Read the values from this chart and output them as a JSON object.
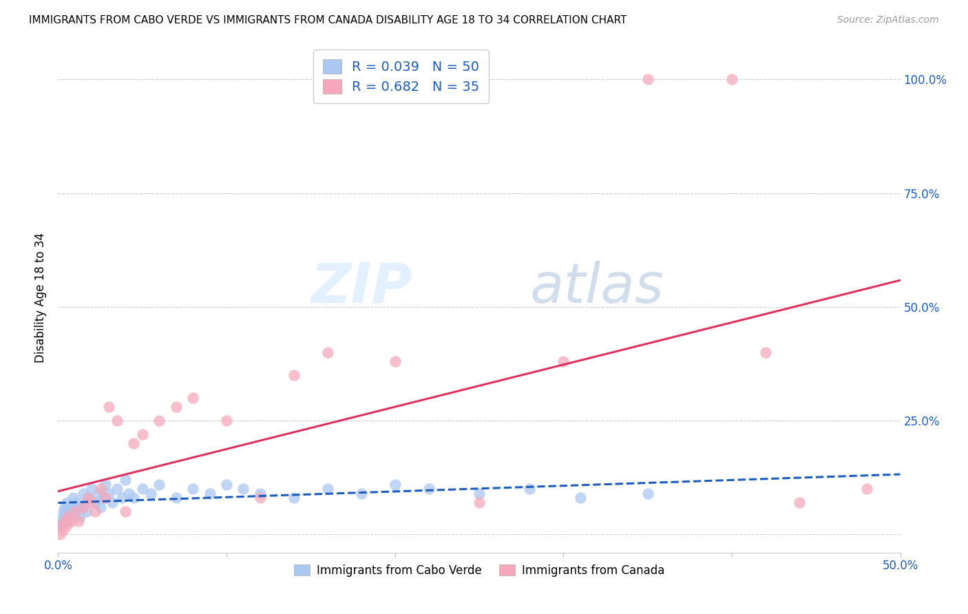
{
  "title": "IMMIGRANTS FROM CABO VERDE VS IMMIGRANTS FROM CANADA DISABILITY AGE 18 TO 34 CORRELATION CHART",
  "source": "Source: ZipAtlas.com",
  "ylabel": "Disability Age 18 to 34",
  "xlim": [
    0.0,
    0.5
  ],
  "ylim": [
    -0.04,
    1.08
  ],
  "xtick_positions": [
    0.0,
    0.1,
    0.2,
    0.3,
    0.4,
    0.5
  ],
  "xticklabels": [
    "0.0%",
    "",
    "",
    "",
    "",
    "50.0%"
  ],
  "ytick_positions": [
    0.0,
    0.25,
    0.5,
    0.75,
    1.0
  ],
  "ytick_labels_right": [
    "",
    "25.0%",
    "50.0%",
    "75.0%",
    "100.0%"
  ],
  "watermark_zip": "ZIP",
  "watermark_atlas": "atlas",
  "cabo_verde_color": "#aac8f0",
  "canada_color": "#f5a8bc",
  "cabo_verde_line_color": "#1a5cbf",
  "canada_line_color": "#e03060",
  "cabo_verde_R": 0.039,
  "cabo_verde_N": 50,
  "canada_R": 0.682,
  "canada_N": 35,
  "legend_label_1": "Immigrants from Cabo Verde",
  "legend_label_2": "Immigrants from Canada",
  "cabo_verde_x": [
    0.001,
    0.002,
    0.003,
    0.003,
    0.004,
    0.005,
    0.005,
    0.006,
    0.007,
    0.008,
    0.009,
    0.01,
    0.011,
    0.012,
    0.013,
    0.015,
    0.016,
    0.017,
    0.018,
    0.02,
    0.022,
    0.024,
    0.025,
    0.027,
    0.028,
    0.03,
    0.032,
    0.035,
    0.038,
    0.04,
    0.042,
    0.045,
    0.05,
    0.055,
    0.06,
    0.07,
    0.08,
    0.09,
    0.1,
    0.11,
    0.12,
    0.14,
    0.16,
    0.18,
    0.2,
    0.22,
    0.25,
    0.28,
    0.31,
    0.35
  ],
  "cabo_verde_y": [
    0.02,
    0.03,
    0.05,
    0.04,
    0.06,
    0.03,
    0.07,
    0.05,
    0.04,
    0.06,
    0.08,
    0.05,
    0.07,
    0.06,
    0.04,
    0.09,
    0.07,
    0.05,
    0.08,
    0.1,
    0.07,
    0.09,
    0.06,
    0.08,
    0.11,
    0.09,
    0.07,
    0.1,
    0.08,
    0.12,
    0.09,
    0.08,
    0.1,
    0.09,
    0.11,
    0.08,
    0.1,
    0.09,
    0.11,
    0.1,
    0.09,
    0.08,
    0.1,
    0.09,
    0.11,
    0.1,
    0.09,
    0.1,
    0.08,
    0.09
  ],
  "canada_x": [
    0.001,
    0.002,
    0.003,
    0.004,
    0.005,
    0.006,
    0.008,
    0.01,
    0.012,
    0.015,
    0.018,
    0.02,
    0.022,
    0.025,
    0.028,
    0.03,
    0.035,
    0.04,
    0.045,
    0.05,
    0.06,
    0.07,
    0.08,
    0.1,
    0.12,
    0.14,
    0.16,
    0.2,
    0.25,
    0.3,
    0.35,
    0.4,
    0.42,
    0.44,
    0.48
  ],
  "canada_y": [
    0.0,
    0.02,
    0.01,
    0.03,
    0.02,
    0.04,
    0.03,
    0.05,
    0.03,
    0.06,
    0.08,
    0.07,
    0.05,
    0.1,
    0.08,
    0.28,
    0.25,
    0.05,
    0.2,
    0.22,
    0.25,
    0.28,
    0.3,
    0.25,
    0.08,
    0.35,
    0.4,
    0.38,
    0.07,
    0.38,
    1.0,
    1.0,
    0.4,
    0.07,
    0.1
  ]
}
